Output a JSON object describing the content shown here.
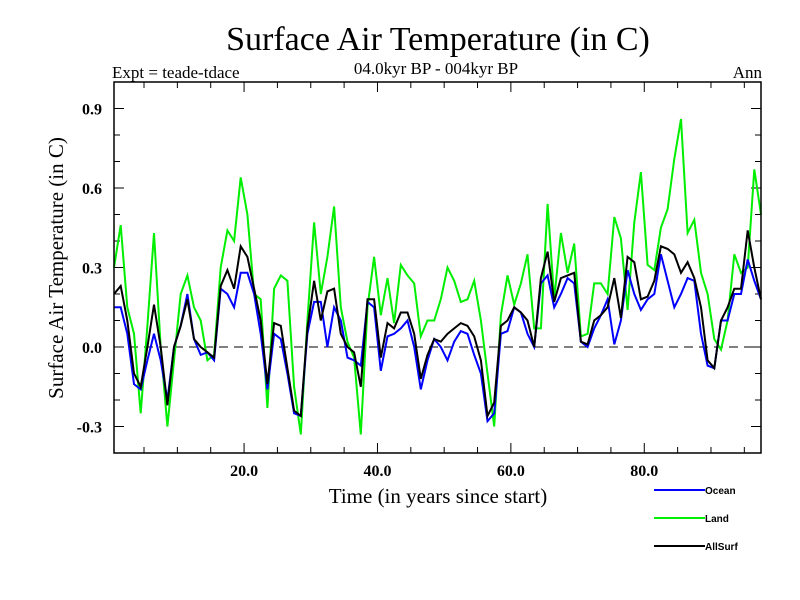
{
  "chart_data": {
    "type": "line",
    "title": "Surface Air Temperature (in C)",
    "subtitle_left": "Expt = teade-tdace",
    "subtitle_center": "04.0kyr BP - 004kyr BP",
    "subtitle_right": "Ann",
    "xlabel": "Time (in years since start)",
    "ylabel": "Surface Air Temperature (in C)",
    "xlim": [
      0.5,
      97.5
    ],
    "ylim": [
      -0.4,
      1.0
    ],
    "x_start": 0.5,
    "x_step": 1,
    "xticks": [
      {
        "value": 20,
        "label": "20.0"
      },
      {
        "value": 40,
        "label": "40.0"
      },
      {
        "value": 60,
        "label": "60.0"
      },
      {
        "value": 80,
        "label": "80.0"
      }
    ],
    "x_minor_step": 5,
    "yticks": [
      {
        "value": -0.3,
        "label": "-0.3"
      },
      {
        "value": 0.0,
        "label": "0.0"
      },
      {
        "value": 0.3,
        "label": "0.3"
      },
      {
        "value": 0.6,
        "label": "0.6"
      },
      {
        "value": 0.9,
        "label": "0.9"
      }
    ],
    "y_minor_step": 0.1,
    "zero_line": true,
    "grid": false,
    "legend_position": "bottom-right",
    "series": [
      {
        "name": "Ocean",
        "color": "#0000ff",
        "values": [
          0.15,
          0.15,
          0.05,
          -0.14,
          -0.16,
          -0.05,
          0.05,
          -0.05,
          -0.2,
          0.0,
          0.08,
          0.2,
          0.03,
          -0.03,
          -0.02,
          -0.05,
          0.22,
          0.2,
          0.15,
          0.28,
          0.28,
          0.2,
          0.05,
          -0.16,
          0.05,
          0.03,
          -0.1,
          -0.25,
          -0.26,
          0.05,
          0.17,
          0.17,
          0.0,
          0.15,
          0.1,
          -0.04,
          -0.05,
          -0.07,
          0.17,
          0.15,
          -0.09,
          0.04,
          0.05,
          0.07,
          0.1,
          0.0,
          -0.16,
          -0.05,
          0.03,
          0.0,
          -0.05,
          0.02,
          0.06,
          0.05,
          -0.03,
          -0.1,
          -0.28,
          -0.25,
          0.05,
          0.06,
          0.15,
          0.13,
          0.05,
          0.0,
          0.24,
          0.27,
          0.15,
          0.2,
          0.26,
          0.24,
          0.02,
          0.0,
          0.07,
          0.12,
          0.18,
          0.01,
          0.1,
          0.29,
          0.2,
          0.14,
          0.18,
          0.2,
          0.35,
          0.25,
          0.15,
          0.2,
          0.26,
          0.25,
          0.05,
          -0.07,
          -0.08,
          0.1,
          0.1,
          0.2,
          0.2,
          0.33,
          0.25,
          0.18
        ]
      },
      {
        "name": "Land",
        "color": "#00ee00",
        "values": [
          0.3,
          0.46,
          0.15,
          0.05,
          -0.25,
          0.08,
          0.43,
          0.0,
          -0.3,
          -0.05,
          0.2,
          0.27,
          0.15,
          0.1,
          -0.05,
          -0.03,
          0.3,
          0.44,
          0.4,
          0.64,
          0.5,
          0.2,
          0.18,
          -0.23,
          0.22,
          0.27,
          0.25,
          -0.15,
          -0.33,
          0.1,
          0.47,
          0.2,
          0.34,
          0.53,
          0.15,
          0.02,
          -0.04,
          -0.33,
          0.15,
          0.34,
          0.12,
          0.26,
          0.09,
          0.31,
          0.27,
          0.24,
          0.04,
          0.1,
          0.1,
          0.18,
          0.3,
          0.25,
          0.17,
          0.18,
          0.25,
          0.1,
          -0.1,
          -0.3,
          0.12,
          0.27,
          0.16,
          0.24,
          0.35,
          0.07,
          0.07,
          0.54,
          0.18,
          0.43,
          0.28,
          0.39,
          0.04,
          0.05,
          0.24,
          0.24,
          0.2,
          0.49,
          0.41,
          0.14,
          0.47,
          0.66,
          0.31,
          0.29,
          0.45,
          0.52,
          0.71,
          0.86,
          0.43,
          0.48,
          0.28,
          0.2,
          0.03,
          -0.01,
          0.1,
          0.35,
          0.28,
          0.3,
          0.67,
          0.5
        ]
      },
      {
        "name": "AllSurf",
        "color": "#000000",
        "values": [
          0.2,
          0.23,
          0.1,
          -0.1,
          -0.15,
          0.0,
          0.16,
          0.0,
          -0.22,
          0.0,
          0.08,
          0.18,
          0.03,
          0.0,
          -0.02,
          -0.04,
          0.23,
          0.29,
          0.22,
          0.38,
          0.34,
          0.22,
          0.1,
          -0.14,
          0.09,
          0.08,
          -0.08,
          -0.24,
          -0.26,
          0.07,
          0.25,
          0.1,
          0.21,
          0.22,
          0.05,
          0.0,
          -0.02,
          -0.15,
          0.18,
          0.18,
          -0.04,
          0.09,
          0.07,
          0.13,
          0.13,
          0.05,
          -0.12,
          -0.03,
          0.03,
          0.02,
          0.05,
          0.07,
          0.09,
          0.08,
          0.04,
          -0.05,
          -0.26,
          -0.21,
          0.08,
          0.1,
          0.15,
          0.13,
          0.1,
          0.0,
          0.26,
          0.36,
          0.17,
          0.26,
          0.27,
          0.28,
          0.02,
          0.01,
          0.1,
          0.12,
          0.15,
          0.26,
          0.11,
          0.34,
          0.32,
          0.18,
          0.19,
          0.25,
          0.38,
          0.37,
          0.35,
          0.28,
          0.32,
          0.26,
          0.15,
          -0.05,
          -0.08,
          0.1,
          0.15,
          0.22,
          0.22,
          0.44,
          0.3,
          0.18
        ]
      }
    ]
  }
}
